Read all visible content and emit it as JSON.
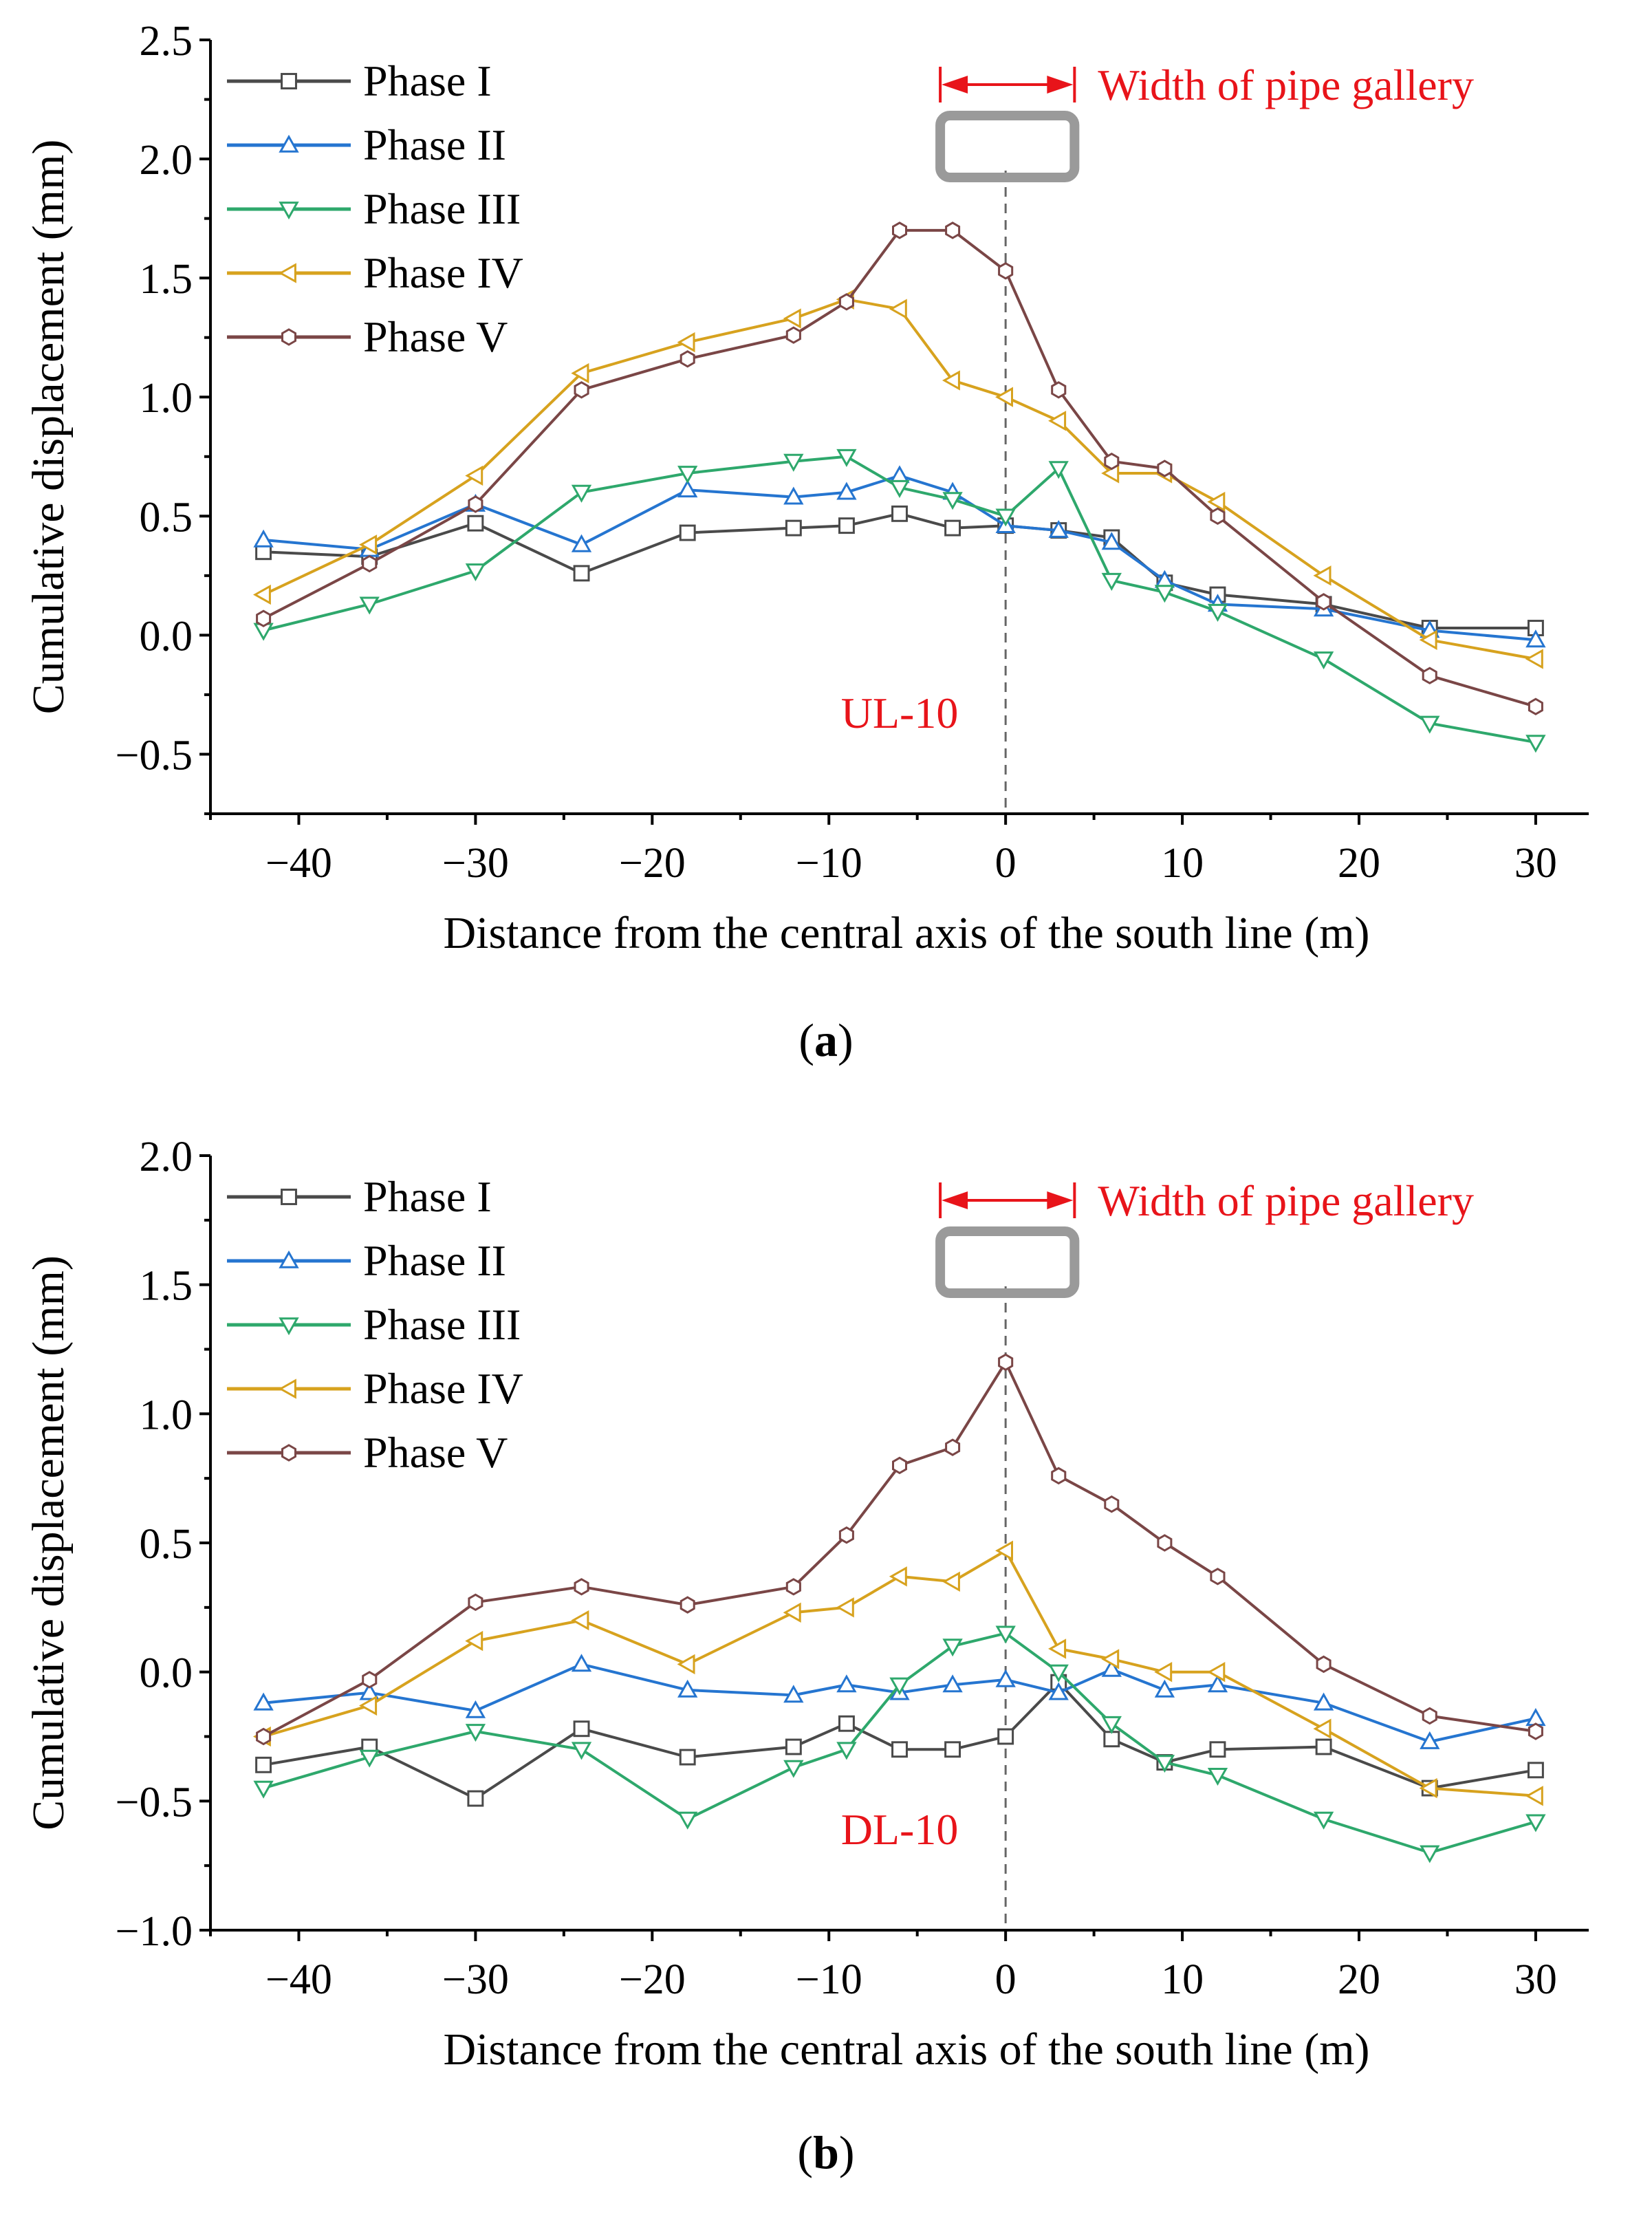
{
  "colors": {
    "axis": "#000000",
    "annotation": "#e8141a",
    "gallery": "#9a9a9a",
    "centerline": "#666666"
  },
  "chart_data": [
    {
      "type": "line",
      "panel_label": "a",
      "annotation": "UL-10",
      "gallery_label": "Width of pipe gallery",
      "gallery_icon": "pipe-gallery-cross-section",
      "xlabel": "Distance from the central axis of the south line (m)",
      "ylabel": "Cumulative displacement (mm)",
      "xlim": [
        -45,
        33
      ],
      "ylim": [
        -0.75,
        2.5
      ],
      "xticks": [
        -40,
        -30,
        -20,
        -10,
        0,
        10,
        20,
        30
      ],
      "xtick_labels": [
        "−40",
        "−30",
        "−20",
        "−10",
        "0",
        "10",
        "20",
        "30"
      ],
      "yticks": [
        -0.5,
        0.0,
        0.5,
        1.0,
        1.5,
        2.0,
        2.5
      ],
      "ytick_labels": [
        "−0.5",
        "0.0",
        "0.5",
        "1.0",
        "1.5",
        "2.0",
        "2.5"
      ],
      "x": [
        -42,
        -36,
        -30,
        -24,
        -18,
        -12,
        -9,
        -6,
        -3,
        0,
        3,
        6,
        9,
        12,
        18,
        24,
        30
      ],
      "series": [
        {
          "name": "Phase I",
          "color": "#4a4a4a",
          "marker": "square",
          "values": [
            0.35,
            0.33,
            0.47,
            0.26,
            0.43,
            0.45,
            0.46,
            0.51,
            0.45,
            0.46,
            0.44,
            0.41,
            0.22,
            0.17,
            0.13,
            0.03,
            0.03
          ]
        },
        {
          "name": "Phase II",
          "color": "#2575d0",
          "marker": "triangle-up",
          "values": [
            0.4,
            0.36,
            0.55,
            0.38,
            0.61,
            0.58,
            0.6,
            0.67,
            0.6,
            0.46,
            0.44,
            0.39,
            0.23,
            0.13,
            0.11,
            0.02,
            -0.02
          ]
        },
        {
          "name": "Phase III",
          "color": "#2ea86c",
          "marker": "triangle-down",
          "values": [
            0.02,
            0.13,
            0.27,
            0.6,
            0.68,
            0.73,
            0.75,
            0.62,
            0.57,
            0.5,
            0.7,
            0.23,
            0.18,
            0.1,
            -0.1,
            -0.37,
            -0.45
          ]
        },
        {
          "name": "Phase IV",
          "color": "#d7a21e",
          "marker": "triangle-left",
          "values": [
            0.17,
            0.38,
            0.67,
            1.1,
            1.23,
            1.33,
            1.41,
            1.37,
            1.07,
            1.0,
            0.9,
            0.68,
            0.68,
            0.56,
            0.25,
            -0.02,
            -0.1
          ]
        },
        {
          "name": "Phase V",
          "color": "#7a4646",
          "marker": "hexagon",
          "values": [
            0.07,
            0.3,
            0.55,
            1.03,
            1.16,
            1.26,
            1.4,
            1.7,
            1.7,
            1.53,
            1.03,
            0.73,
            0.7,
            0.5,
            0.14,
            -0.17,
            -0.3
          ]
        }
      ]
    },
    {
      "type": "line",
      "panel_label": "b",
      "annotation": "DL-10",
      "gallery_label": "Width of pipe gallery",
      "gallery_icon": "pipe-gallery-cross-section",
      "xlabel": "Distance from the central axis of the south line (m)",
      "ylabel": "Cumulative displacement (mm)",
      "xlim": [
        -45,
        33
      ],
      "ylim": [
        -1.0,
        2.0
      ],
      "xticks": [
        -40,
        -30,
        -20,
        -10,
        0,
        10,
        20,
        30
      ],
      "xtick_labels": [
        "−40",
        "−30",
        "−20",
        "−10",
        "0",
        "10",
        "20",
        "30"
      ],
      "yticks": [
        -1.0,
        -0.5,
        0.0,
        0.5,
        1.0,
        1.5,
        2.0
      ],
      "ytick_labels": [
        "−1.0",
        "−0.5",
        "0.0",
        "0.5",
        "1.0",
        "1.5",
        "2.0"
      ],
      "x": [
        -42,
        -36,
        -30,
        -24,
        -18,
        -12,
        -9,
        -6,
        -3,
        0,
        3,
        6,
        9,
        12,
        18,
        24,
        30
      ],
      "series": [
        {
          "name": "Phase I",
          "color": "#4a4a4a",
          "marker": "square",
          "values": [
            -0.36,
            -0.29,
            -0.49,
            -0.22,
            -0.33,
            -0.29,
            -0.2,
            -0.3,
            -0.3,
            -0.25,
            -0.04,
            -0.26,
            -0.35,
            -0.3,
            -0.29,
            -0.45,
            -0.38
          ]
        },
        {
          "name": "Phase II",
          "color": "#2575d0",
          "marker": "triangle-up",
          "values": [
            -0.12,
            -0.08,
            -0.15,
            0.03,
            -0.07,
            -0.09,
            -0.05,
            -0.08,
            -0.05,
            -0.03,
            -0.08,
            0.01,
            -0.07,
            -0.05,
            -0.12,
            -0.27,
            -0.18
          ]
        },
        {
          "name": "Phase III",
          "color": "#2ea86c",
          "marker": "triangle-down",
          "values": [
            -0.45,
            -0.33,
            -0.23,
            -0.3,
            -0.57,
            -0.37,
            -0.3,
            -0.05,
            0.1,
            0.15,
            0.0,
            -0.2,
            -0.35,
            -0.4,
            -0.57,
            -0.7,
            -0.58
          ]
        },
        {
          "name": "Phase IV",
          "color": "#d7a21e",
          "marker": "triangle-left",
          "values": [
            -0.25,
            -0.13,
            0.12,
            0.2,
            0.03,
            0.23,
            0.25,
            0.37,
            0.35,
            0.47,
            0.09,
            0.05,
            0.0,
            0.0,
            -0.22,
            -0.45,
            -0.48
          ]
        },
        {
          "name": "Phase V",
          "color": "#7a4646",
          "marker": "hexagon",
          "values": [
            -0.25,
            -0.03,
            0.27,
            0.33,
            0.26,
            0.33,
            0.53,
            0.8,
            0.87,
            1.2,
            0.76,
            0.65,
            0.5,
            0.37,
            0.03,
            -0.17,
            -0.23
          ]
        }
      ]
    }
  ]
}
